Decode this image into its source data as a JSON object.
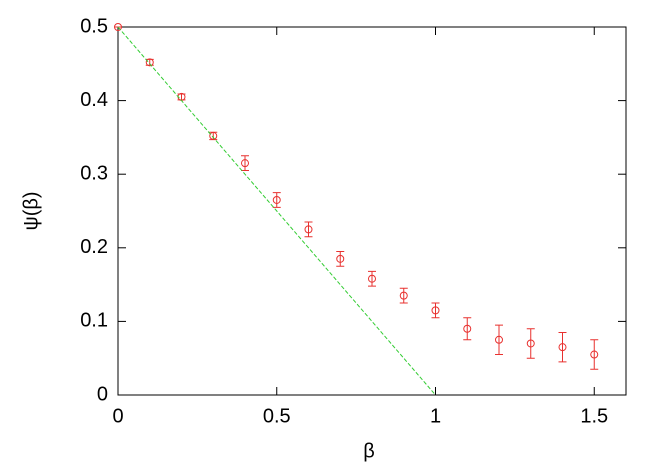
{
  "chart_data": {
    "type": "scatter",
    "x_label": "β",
    "y_label": "ψ(β)",
    "xlim": [
      0,
      1.6
    ],
    "ylim": [
      0,
      0.5
    ],
    "xticks": [
      0,
      0.5,
      1,
      1.5
    ],
    "yticks": [
      0,
      0.1,
      0.2,
      0.3,
      0.4,
      0.5
    ],
    "series": [
      {
        "type": "scatter",
        "color": "#e8312f",
        "x": [
          0,
          0.1,
          0.2,
          0.3,
          0.4,
          0.5,
          0.6,
          0.7,
          0.8,
          0.9,
          1.0,
          1.1,
          1.2,
          1.3,
          1.4,
          1.5
        ],
        "values": [
          0.5,
          0.452,
          0.405,
          0.352,
          0.315,
          0.265,
          0.225,
          0.185,
          0.158,
          0.135,
          0.115,
          0.09,
          0.075,
          0.07,
          0.065,
          0.055
        ],
        "errors": [
          0,
          0.004,
          0.004,
          0.005,
          0.01,
          0.01,
          0.01,
          0.01,
          0.01,
          0.01,
          0.01,
          0.015,
          0.02,
          0.02,
          0.02,
          0.02
        ]
      },
      {
        "type": "line",
        "color": "#33cc33",
        "dashed": true,
        "x": [
          0,
          1
        ],
        "values": [
          0.5,
          0
        ]
      }
    ]
  }
}
